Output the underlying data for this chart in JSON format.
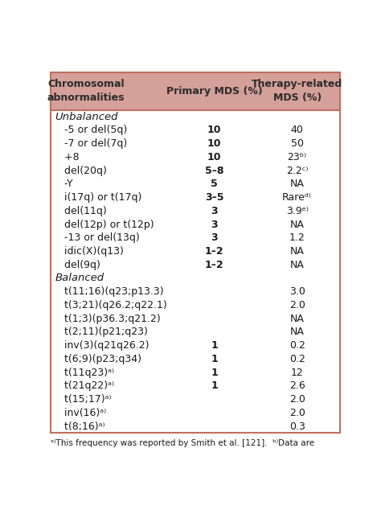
{
  "header_bg": "#d4a099",
  "header_text_color": "#2c2c2c",
  "body_bg": "#ffffff",
  "border_color": "#c07060",
  "title_col1": "Chromosomal\nabnormalities",
  "title_col2": "Primary MDS (%)",
  "title_col3": "Therapy-related\nMDS (%)",
  "rows": [
    {
      "col1": "Unbalanced",
      "col2": "",
      "col3": "",
      "style": "italic_section"
    },
    {
      "col1": "   -5 or del(5q)",
      "col2": "10",
      "col3": "40",
      "style": "normal"
    },
    {
      "col1": "   -7 or del(7q)",
      "col2": "10",
      "col3": "50",
      "style": "normal"
    },
    {
      "col1": "   +8",
      "col2": "10",
      "col3": "23ᵇ⁾",
      "style": "normal"
    },
    {
      "col1": "   del(20q)",
      "col2": "5–8",
      "col3": "2.2ᶜ⁾",
      "style": "normal"
    },
    {
      "col1": "   -Y",
      "col2": "5",
      "col3": "NA",
      "style": "normal"
    },
    {
      "col1": "   i(17q) or t(17q)",
      "col2": "3–5",
      "col3": "Rareᵈ⁾",
      "style": "normal"
    },
    {
      "col1": "   del(11q)",
      "col2": "3",
      "col3": "3.9ᵉ⁾",
      "style": "normal"
    },
    {
      "col1": "   del(12p) or t(12p)",
      "col2": "3",
      "col3": "NA",
      "style": "normal"
    },
    {
      "col1": "   -13 or del(13q)",
      "col2": "3",
      "col3": "1.2",
      "style": "normal"
    },
    {
      "col1": "   idic(X)(q13)",
      "col2": "1–2",
      "col3": "NA",
      "style": "normal"
    },
    {
      "col1": "   del(9q)",
      "col2": "1–2",
      "col3": "NA",
      "style": "normal"
    },
    {
      "col1": "Balanced",
      "col2": "",
      "col3": "",
      "style": "italic_section"
    },
    {
      "col1": "   t(11;16)(q23;p13.3)",
      "col2": "",
      "col3": "3.0",
      "style": "normal"
    },
    {
      "col1": "   t(3;21)(q26.2;q22.1)",
      "col2": "",
      "col3": "2.0",
      "style": "normal"
    },
    {
      "col1": "   t(1;3)(p36.3;q21.2)",
      "col2": "",
      "col3": "NA",
      "style": "normal"
    },
    {
      "col1": "   t(2;11)(p21;q23)",
      "col2": "",
      "col3": "NA",
      "style": "normal"
    },
    {
      "col1": "   inv(3)(q21q26.2)",
      "col2": "1",
      "col3": "0.2",
      "style": "normal"
    },
    {
      "col1": "   t(6;9)(p23;q34)",
      "col2": "1",
      "col3": "0.2",
      "style": "normal"
    },
    {
      "col1": "   t(11q23)ᵃ⁾",
      "col2": "1",
      "col3": "12",
      "style": "normal"
    },
    {
      "col1": "   t(21q22)ᵃ⁾",
      "col2": "1",
      "col3": "2.6",
      "style": "normal"
    },
    {
      "col1": "   t(15;17)ᵃ⁾",
      "col2": "",
      "col3": "2.0",
      "style": "normal"
    },
    {
      "col1": "   inv(16)ᵃ⁾",
      "col2": "",
      "col3": "2.0",
      "style": "normal"
    },
    {
      "col1": "   t(8;16)ᵃ⁾",
      "col2": "",
      "col3": "0.3",
      "style": "normal"
    }
  ],
  "footnote": "ᵃ⁾This frequency was reported by Smith et al. [121].  ᵇ⁾Data are",
  "figsize": [
    4.74,
    6.44
  ],
  "dpi": 100
}
